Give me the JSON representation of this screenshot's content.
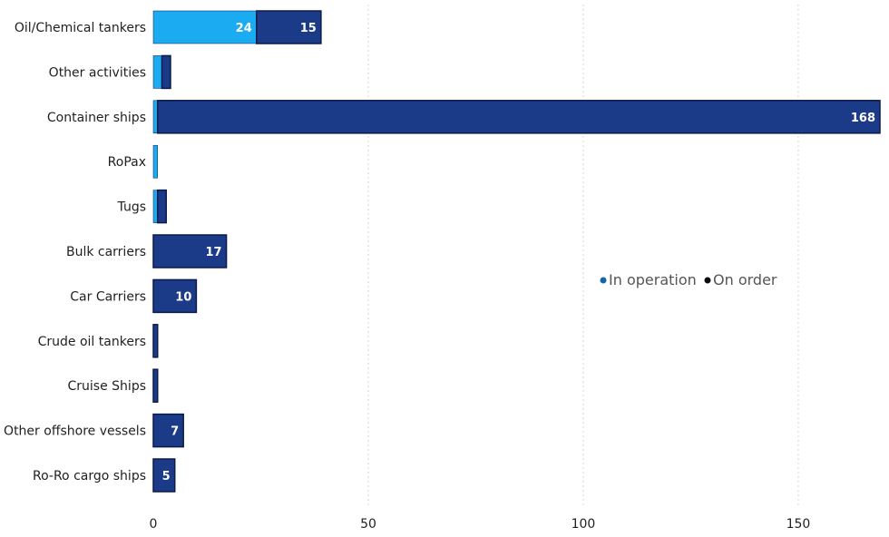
{
  "chart_data": {
    "type": "bar",
    "orientation": "horizontal",
    "stacked": true,
    "categories": [
      "Oil/Chemical tankers",
      "Other activities",
      "Container ships",
      "RoPax",
      "Tugs",
      "Bulk carriers",
      "Car Carriers",
      "Crude oil tankers",
      "Cruise Ships",
      "Other offshore vessels",
      "Ro-Ro cargo ships"
    ],
    "series": [
      {
        "name": "In operation",
        "color": "#1aabf0",
        "values": [
          24,
          2,
          1,
          1,
          1,
          0,
          0,
          0,
          0,
          0,
          0
        ],
        "labels": [
          "24",
          "",
          "",
          "",
          "",
          "",
          "",
          "",
          "",
          "",
          ""
        ]
      },
      {
        "name": "On order",
        "color": "#1b3a87",
        "values": [
          15,
          2,
          168,
          0,
          2,
          17,
          10,
          1,
          1,
          7,
          5
        ],
        "labels": [
          "15",
          "",
          "168",
          "",
          "",
          "17",
          "10",
          "",
          "",
          "7",
          "5"
        ]
      }
    ],
    "legend_colors": [
      "#1565a8",
      "#0c0c14"
    ],
    "xlim": [
      0,
      169
    ],
    "xticks": [
      0,
      50,
      100,
      150
    ],
    "grid": true,
    "legend_position": "middle-right",
    "title": "",
    "xlabel": "",
    "ylabel": ""
  }
}
